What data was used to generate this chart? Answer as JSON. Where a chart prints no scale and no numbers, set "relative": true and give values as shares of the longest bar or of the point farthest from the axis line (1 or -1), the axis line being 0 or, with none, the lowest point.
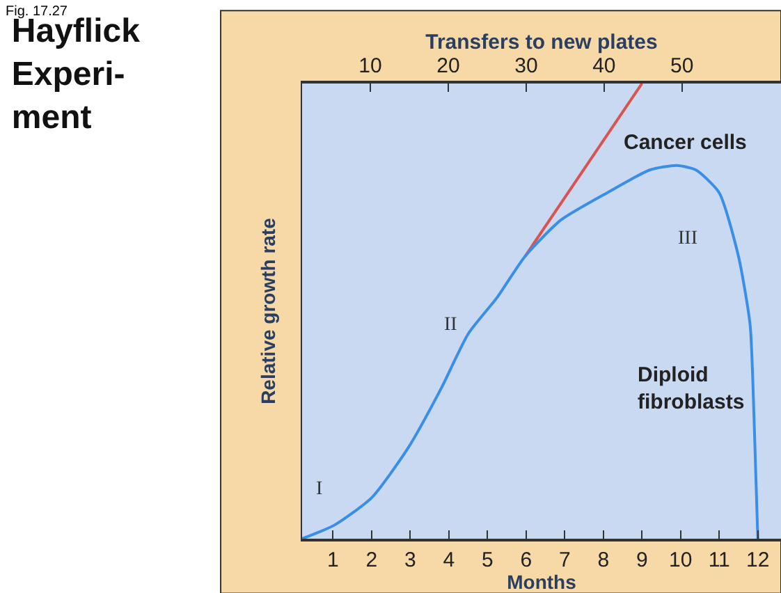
{
  "chart_data": {
    "type": "line",
    "title": "Hayflick\nExperi-\nment",
    "xlabel": "Months",
    "x2label": "Transfers to new plates",
    "ylabel": "Relative growth rate",
    "relative": true,
    "xlim": [
      0.2,
      12.6
    ],
    "xticks": [
      1,
      2,
      3,
      4,
      5,
      6,
      7,
      8,
      9,
      10,
      11,
      12
    ],
    "x2lim": [
      1.25,
      62.7
    ],
    "x2ticks": [
      10,
      20,
      30,
      40,
      50
    ],
    "legend": false,
    "grid": false,
    "series": [
      {
        "name": "Cancer cells",
        "color": "#d9534f",
        "x": [
          5.97,
          9.0
        ],
        "values": [
          0.62,
          1
        ]
      },
      {
        "name": "Diploid fibroblasts",
        "color": "#3a8ee6",
        "x": [
          0.2,
          1.04,
          2.0,
          2.95,
          3.8,
          4.5,
          5.25,
          5.97,
          6.9,
          8.1,
          9.2,
          9.9,
          10.4,
          11.0,
          11.5,
          11.8,
          11.9,
          12.0
        ],
        "values": [
          0,
          0.03,
          0.09,
          0.2,
          0.33,
          0.45,
          0.53,
          0.62,
          0.7,
          0.76,
          0.81,
          0.82,
          0.81,
          0.76,
          0.62,
          0.47,
          0.27,
          0
        ]
      }
    ],
    "annotations": [
      "I",
      "II",
      "III",
      "Fig. 17.27"
    ]
  }
}
